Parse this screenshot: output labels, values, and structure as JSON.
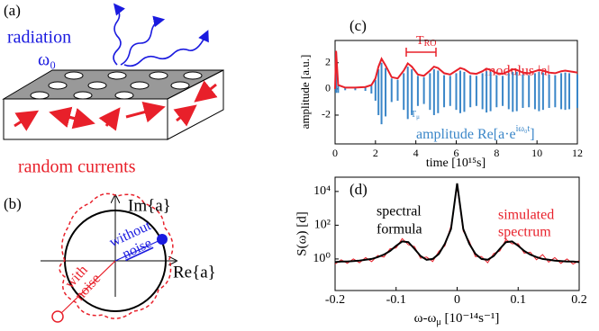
{
  "panel_a": {
    "label": "(a)",
    "radiation": "radiation",
    "omega": "ω₀",
    "currents": "random currents"
  },
  "panel_b": {
    "label": "(b)",
    "im_axis": "Im{a}",
    "re_axis": "Re{a}",
    "without_noise": [
      "without",
      "noise"
    ],
    "with_noise": [
      "with",
      "noise"
    ]
  },
  "chart_data": [
    {
      "type": "line",
      "label": "(c)",
      "ylabel": "amplitude [a.u.]",
      "xlabel": "time [10¹⁵s]",
      "annotations": {
        "t_ro": {
          "main": "T",
          "sub": "RO"
        },
        "t_mu": {
          "main": "T",
          "sub": "μ"
        }
      },
      "xlim": [
        0,
        12
      ],
      "xticks": [
        0,
        2,
        4,
        6,
        8,
        10,
        12
      ],
      "ylim": [
        -4.2,
        3.7
      ],
      "yticks": [
        -2,
        0,
        2
      ],
      "x": [
        0,
        0.05,
        0.15,
        0.5,
        1,
        1.5,
        1.8,
        2.0,
        2.15,
        2.3,
        2.5,
        2.8,
        3.1,
        3.4,
        3.6,
        3.8,
        4.1,
        4.4,
        4.7,
        4.9,
        5.1,
        5.4,
        5.7,
        6.0,
        6.2,
        6.4,
        6.7,
        7.0,
        7.3,
        7.5,
        7.7,
        8.0,
        8.3,
        8.6,
        8.8,
        9.0,
        9.3,
        9.6,
        9.9,
        10.1,
        10.3,
        10.6,
        10.9,
        11.2,
        11.4,
        11.6,
        12
      ],
      "series": [
        {
          "name": "modulus |a|",
          "color": "#e8202a",
          "values": [
            0,
            2.9,
            0.3,
            0.1,
            0.1,
            0.15,
            0.3,
            0.8,
            1.7,
            2.3,
            1.8,
            0.9,
            0.8,
            1.4,
            1.95,
            1.7,
            1.1,
            1.0,
            1.4,
            1.7,
            1.6,
            1.2,
            1.1,
            1.4,
            1.6,
            1.5,
            1.2,
            1.15,
            1.35,
            1.55,
            1.45,
            1.2,
            1.15,
            1.35,
            1.5,
            1.45,
            1.25,
            1.2,
            1.35,
            1.45,
            1.4,
            1.25,
            1.2,
            1.35,
            1.4,
            1.35,
            1.25
          ]
        },
        {
          "name": {
            "main": "amplitude Re[a·e",
            "sup": "iω₀t",
            "tail": "]"
          },
          "color": "#3a86c8",
          "high": [
            0,
            2.8,
            0.25,
            0.1,
            0.1,
            0.1,
            0.25,
            0.7,
            1.5,
            2.0,
            1.6,
            0.8,
            0.7,
            1.2,
            1.7,
            1.5,
            1.0,
            0.9,
            1.2,
            1.5,
            1.4,
            1.05,
            1.0,
            1.2,
            1.4,
            1.3,
            1.05,
            1.0,
            1.2,
            1.35,
            1.3,
            1.05,
            1.0,
            1.2,
            1.3,
            1.3,
            1.1,
            1.05,
            1.2,
            1.3,
            1.25,
            1.1,
            1.05,
            1.2,
            1.25,
            1.2,
            1.1
          ],
          "low": [
            0,
            -0.3,
            -0.3,
            -0.1,
            -0.1,
            -0.15,
            -0.35,
            -0.9,
            -2.0,
            -2.7,
            -2.1,
            -1.0,
            -0.9,
            -1.6,
            -2.3,
            -2.0,
            -1.3,
            -1.15,
            -1.6,
            -2.0,
            -1.85,
            -1.4,
            -1.3,
            -1.6,
            -1.85,
            -1.75,
            -1.4,
            -1.3,
            -1.55,
            -1.8,
            -1.7,
            -1.4,
            -1.3,
            -1.55,
            -1.75,
            -1.7,
            -1.45,
            -1.4,
            -1.55,
            -1.7,
            -1.6,
            -1.45,
            -1.4,
            -1.55,
            -1.6,
            -1.55,
            -1.45
          ]
        }
      ]
    },
    {
      "type": "line",
      "label": "(d)",
      "ylabel": "S(ω) [d]",
      "xlabel": {
        "main": "ω-ω",
        "sub": "μ",
        "tail": " [10⁻¹⁴s⁻¹]"
      },
      "log_y": true,
      "xlim": [
        -0.2,
        0.2
      ],
      "xticks": [
        -0.2,
        -0.1,
        0,
        0.1,
        0.2
      ],
      "ylim": [
        0.0135,
        70000
      ],
      "yticks": [
        {
          "value": 1,
          "label": "10⁰"
        },
        {
          "value": 100,
          "label": "10²"
        },
        {
          "value": 10000,
          "label": "10⁴"
        }
      ],
      "x": [
        -0.2,
        -0.19,
        -0.18,
        -0.17,
        -0.16,
        -0.15,
        -0.14,
        -0.13,
        -0.12,
        -0.11,
        -0.1,
        -0.09,
        -0.08,
        -0.07,
        -0.06,
        -0.05,
        -0.04,
        -0.03,
        -0.02,
        -0.01,
        0,
        0.01,
        0.02,
        0.03,
        0.04,
        0.05,
        0.06,
        0.07,
        0.08,
        0.09,
        0.1,
        0.11,
        0.12,
        0.13,
        0.14,
        0.15,
        0.16,
        0.17,
        0.18,
        0.19,
        0.2
      ],
      "series": [
        {
          "name": [
            "simulated",
            "spectrum"
          ],
          "color": "#e8202a",
          "values": [
            0.5,
            0.9,
            0.55,
            1.0,
            0.6,
            1.2,
            0.7,
            1.6,
            1.3,
            4,
            4.5,
            16,
            7,
            5.5,
            1.1,
            1.3,
            0.7,
            2.8,
            6,
            90,
            20000,
            45,
            11,
            1.4,
            1.4,
            0.6,
            2.1,
            3,
            14,
            8,
            8,
            2.2,
            2.5,
            0.9,
            1.8,
            0.65,
            1.2,
            0.55,
            1.0,
            0.5,
            0.8
          ]
        },
        {
          "name": [
            "spectral",
            "formula"
          ],
          "color": "#000000",
          "values": [
            0.65,
            0.7,
            0.7,
            0.75,
            0.8,
            0.9,
            1.0,
            1.3,
            1.8,
            3,
            6,
            11,
            10,
            4,
            1.5,
            0.9,
            1.0,
            2,
            8,
            60,
            30000,
            60,
            8,
            2,
            1.0,
            0.9,
            1.5,
            4,
            10,
            11,
            6,
            3,
            1.8,
            1.3,
            1.0,
            0.9,
            0.8,
            0.75,
            0.7,
            0.7,
            0.65
          ]
        }
      ]
    }
  ]
}
